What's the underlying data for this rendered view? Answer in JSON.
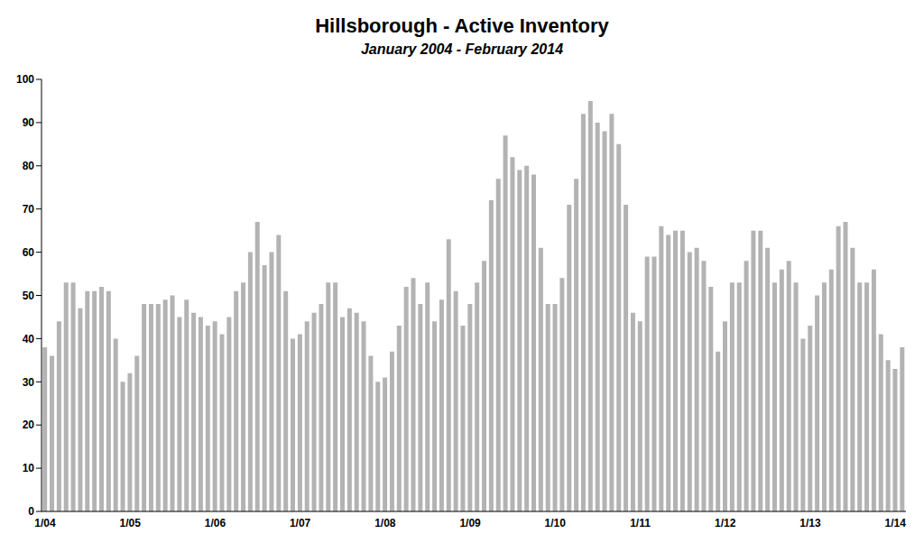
{
  "chart_data": {
    "type": "bar",
    "title": "Hillsborough - Active Inventory",
    "subtitle": "January 2004 - February 2014",
    "categories": [
      "1/04",
      null,
      null,
      null,
      null,
      null,
      null,
      null,
      null,
      null,
      null,
      null,
      "1/05",
      null,
      null,
      null,
      null,
      null,
      null,
      null,
      null,
      null,
      null,
      null,
      "1/06",
      null,
      null,
      null,
      null,
      null,
      null,
      null,
      null,
      null,
      null,
      null,
      "1/07",
      null,
      null,
      null,
      null,
      null,
      null,
      null,
      null,
      null,
      null,
      null,
      "1/08",
      null,
      null,
      null,
      null,
      null,
      null,
      null,
      null,
      null,
      null,
      null,
      "1/09",
      null,
      null,
      null,
      null,
      null,
      null,
      null,
      null,
      null,
      null,
      null,
      "1/10",
      null,
      null,
      null,
      null,
      null,
      null,
      null,
      null,
      null,
      null,
      null,
      "1/11",
      null,
      null,
      null,
      null,
      null,
      null,
      null,
      null,
      null,
      null,
      null,
      "1/12",
      null,
      null,
      null,
      null,
      null,
      null,
      null,
      null,
      null,
      null,
      null,
      "1/13",
      null,
      null,
      null,
      null,
      null,
      null,
      null,
      null,
      null,
      null,
      null,
      "1/14",
      null
    ],
    "values": [
      38,
      36,
      44,
      53,
      53,
      47,
      51,
      51,
      52,
      51,
      40,
      30,
      32,
      36,
      48,
      48,
      48,
      49,
      50,
      45,
      49,
      46,
      45,
      43,
      44,
      41,
      45,
      51,
      53,
      60,
      67,
      57,
      60,
      64,
      51,
      40,
      41,
      44,
      46,
      48,
      53,
      53,
      45,
      47,
      46,
      44,
      36,
      30,
      31,
      37,
      43,
      52,
      54,
      48,
      53,
      44,
      49,
      63,
      51,
      43,
      48,
      53,
      58,
      72,
      77,
      87,
      82,
      79,
      80,
      78,
      61,
      48,
      48,
      54,
      71,
      77,
      92,
      95,
      90,
      88,
      92,
      85,
      71,
      46,
      44,
      59,
      59,
      66,
      64,
      65,
      65,
      60,
      61,
      58,
      52,
      37,
      44,
      53,
      53,
      58,
      65,
      65,
      61,
      53,
      56,
      58,
      53,
      40,
      43,
      50,
      53,
      56,
      66,
      67,
      61,
      53,
      53,
      56,
      41,
      35,
      33,
      38
    ],
    "color": "#b3b3b3",
    "ylim": [
      0,
      100
    ],
    "yticks": [
      0,
      10,
      20,
      30,
      40,
      50,
      60,
      70,
      80,
      90,
      100
    ],
    "grid": false
  }
}
